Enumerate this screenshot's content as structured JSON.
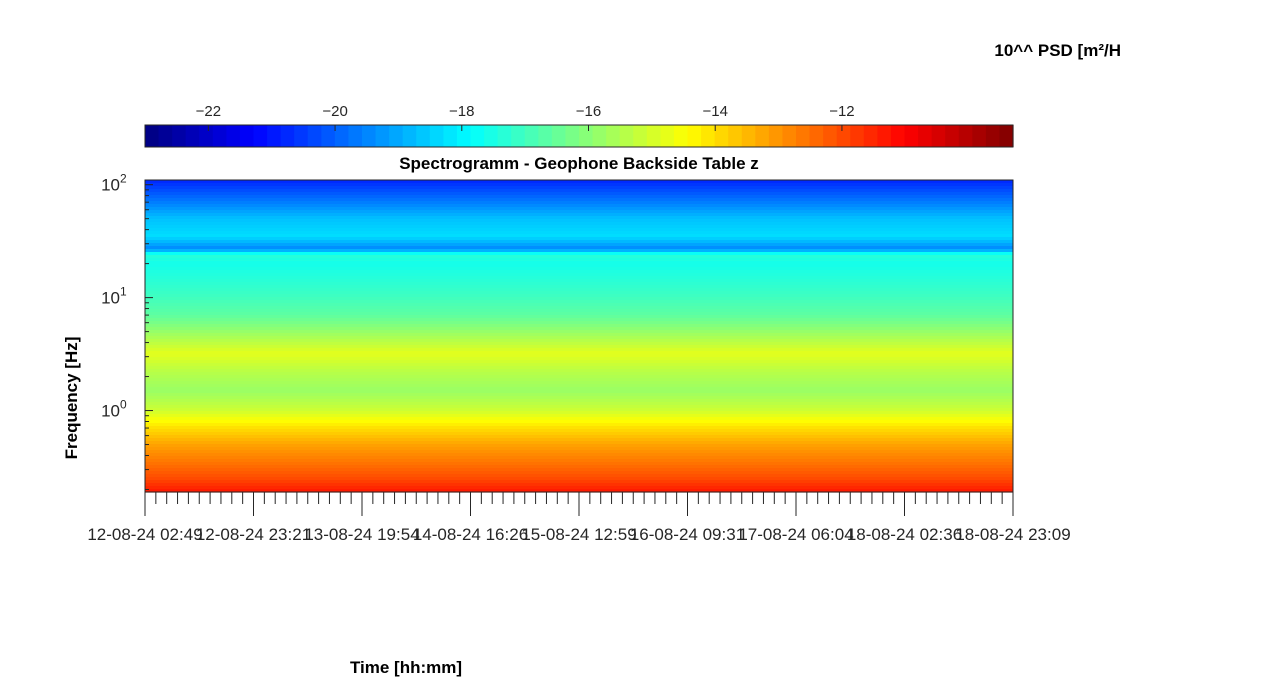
{
  "chart_data": {
    "type": "heatmap",
    "title": "Spectrogramm - Geophone Backside Table z",
    "xlabel": "Time [hh:mm]",
    "ylabel": "Frequency [Hz]",
    "colorbar_label": "10^^ PSD [m²/H",
    "colorbar_ticks": [
      -22,
      -20,
      -18,
      -16,
      -14,
      -12
    ],
    "colorbar_range": [
      -23.0,
      -9.3
    ],
    "colormap": "jet",
    "colorbar_location": "top",
    "y_scale": "log",
    "ylim": [
      0.19,
      110
    ],
    "y_ticks": [
      {
        "value": 1,
        "base": "10",
        "exp": "0"
      },
      {
        "value": 10,
        "base": "10",
        "exp": "1"
      },
      {
        "value": 100,
        "base": "10",
        "exp": "2"
      }
    ],
    "x_tick_labels": [
      "12-08-24  02:49",
      "12-08-24  23:21",
      "13-08-24  19:54",
      "14-08-24  16:26",
      "15-08-24  12:59",
      "16-08-24  09:31",
      "17-08-24  06:04",
      "18-08-24  02:36",
      "18-08-24  23:09"
    ],
    "x_minor_ticks_per_major": 10,
    "psd_profile": [
      {
        "f": 0.19,
        "psd": -11.3
      },
      {
        "f": 0.25,
        "psd": -12.0
      },
      {
        "f": 0.35,
        "psd": -12.6
      },
      {
        "f": 0.5,
        "psd": -13.2
      },
      {
        "f": 0.7,
        "psd": -14.0
      },
      {
        "f": 1.0,
        "psd": -15.1
      },
      {
        "f": 1.5,
        "psd": -15.8
      },
      {
        "f": 2.2,
        "psd": -15.4
      },
      {
        "f": 3.2,
        "psd": -14.8
      },
      {
        "f": 4.5,
        "psd": -15.6
      },
      {
        "f": 7,
        "psd": -16.6
      },
      {
        "f": 10,
        "psd": -17.0
      },
      {
        "f": 14,
        "psd": -17.3
      },
      {
        "f": 20,
        "psd": -17.6
      },
      {
        "f": 24,
        "psd": -17.3
      },
      {
        "f": 27,
        "psd": -19.5
      },
      {
        "f": 35,
        "psd": -18.3
      },
      {
        "f": 50,
        "psd": -18.7
      },
      {
        "f": 75,
        "psd": -19.8
      },
      {
        "f": 110,
        "psd": -20.8
      }
    ]
  }
}
